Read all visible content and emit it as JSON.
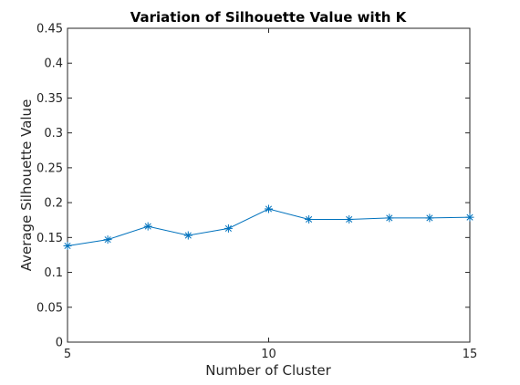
{
  "chart_data": {
    "type": "line",
    "title": "Variation of Silhouette Value with K",
    "xlabel": "Number of Cluster",
    "ylabel": "Average Silhouette Value",
    "xlim": [
      5,
      15
    ],
    "ylim": [
      0,
      0.45
    ],
    "xticks": [
      5,
      10,
      15
    ],
    "yticks": [
      0,
      0.05,
      0.1,
      0.15,
      0.2,
      0.25,
      0.3,
      0.35,
      0.4,
      0.45
    ],
    "grid": false,
    "series": [
      {
        "marker": "asterisk",
        "color": "#0072BD",
        "x": [
          5,
          6,
          7,
          8,
          9,
          10,
          11,
          12,
          13,
          14,
          15
        ],
        "y": [
          0.138,
          0.147,
          0.166,
          0.153,
          0.163,
          0.191,
          0.176,
          0.176,
          0.178,
          0.178,
          0.179
        ]
      }
    ]
  }
}
